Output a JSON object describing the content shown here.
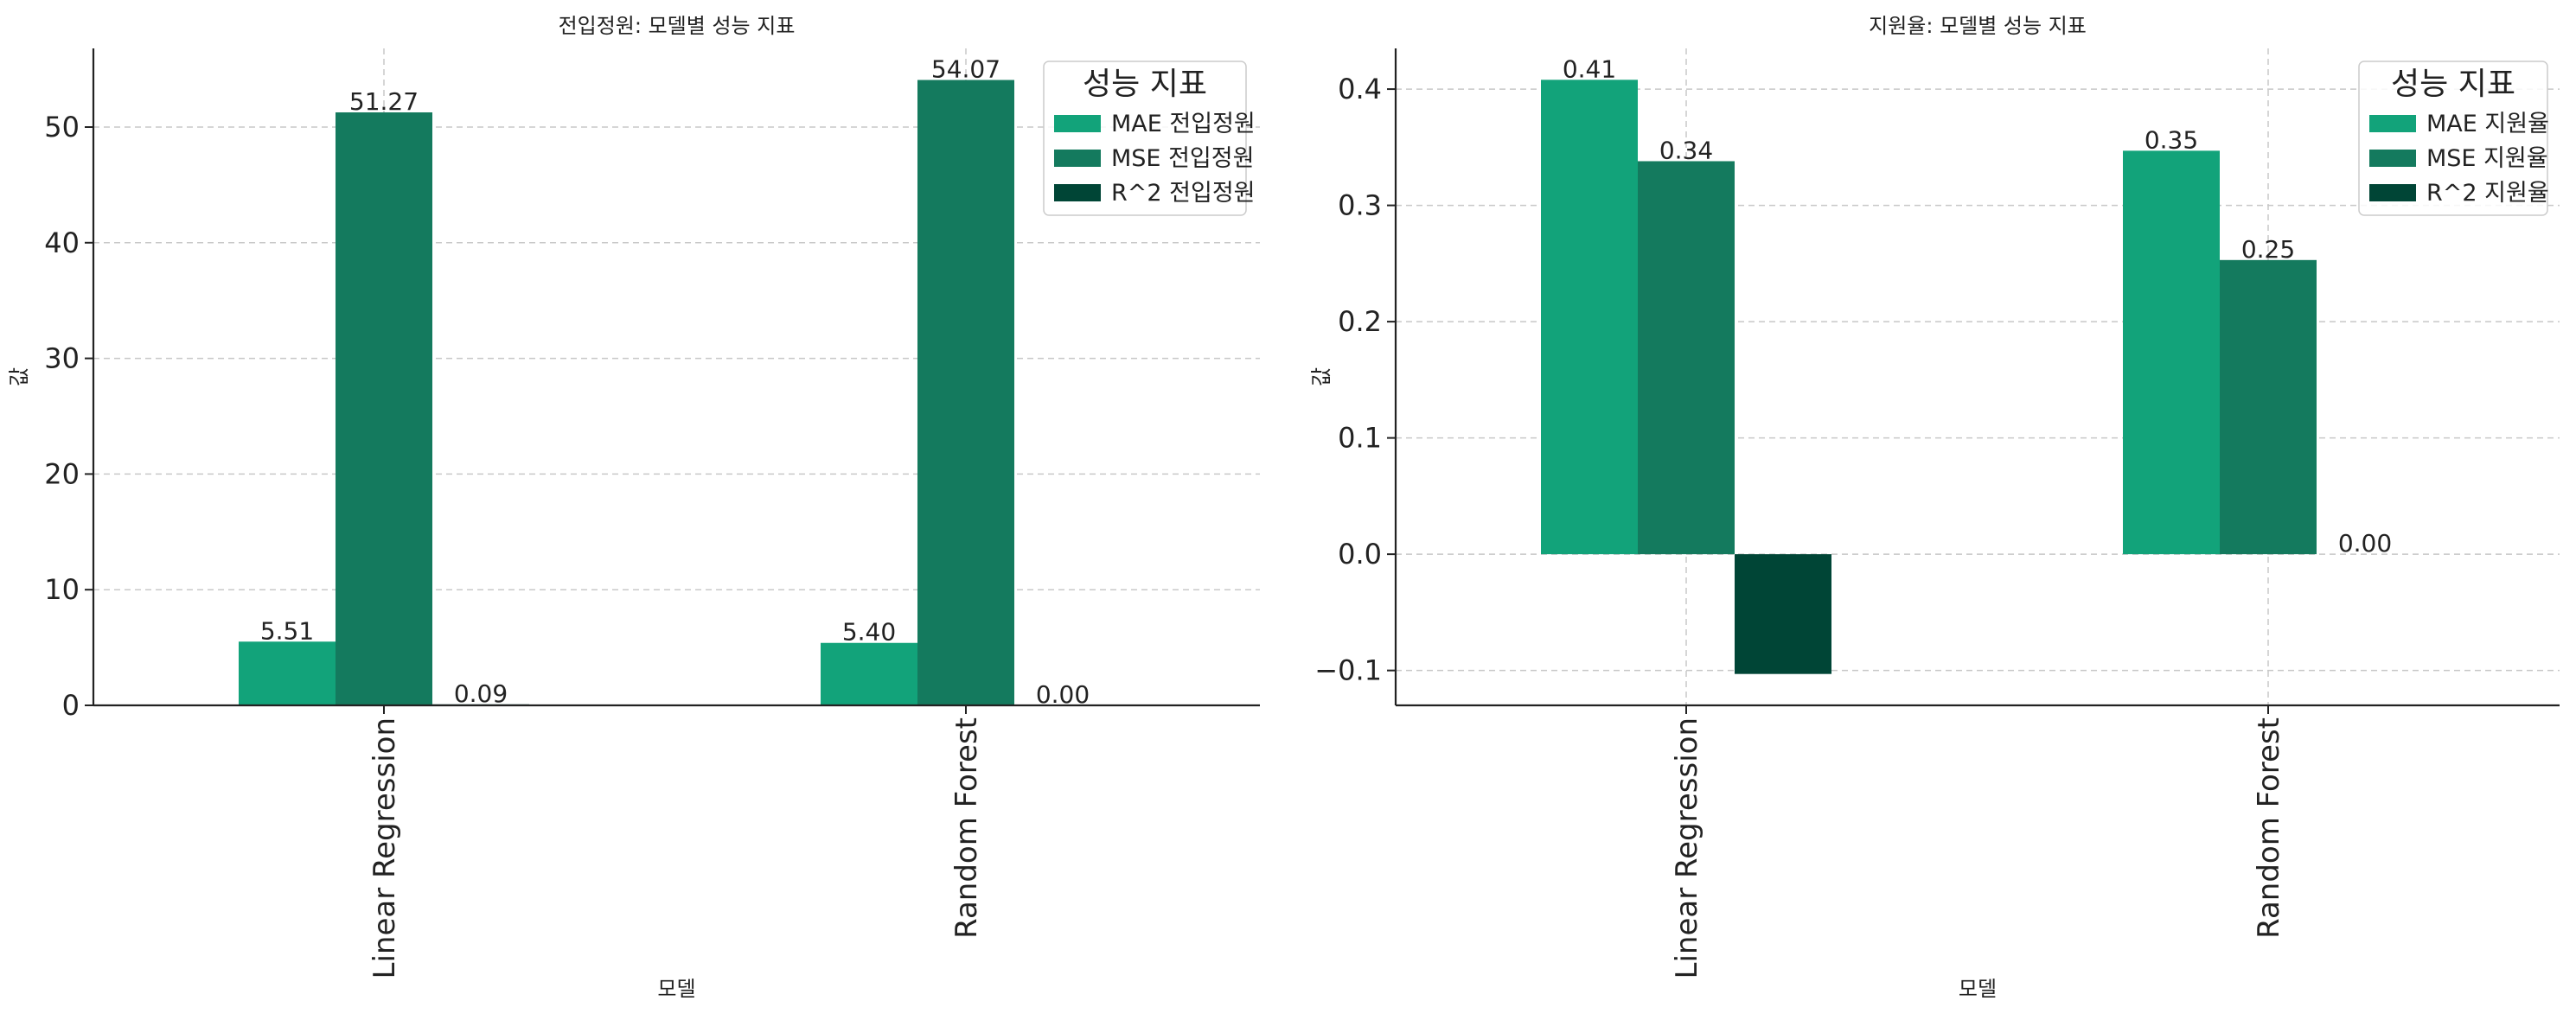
{
  "chart_data": [
    {
      "type": "bar",
      "title": "전입정원: 모델별 성능 지표",
      "xlabel": "모델",
      "ylabel": "값",
      "categories": [
        "Linear Regression",
        "Random Forest"
      ],
      "series": [
        {
          "name": "MAE 전입정원",
          "values": [
            5.51,
            5.4
          ],
          "color": "#12a37a"
        },
        {
          "name": "MSE 전입정원",
          "values": [
            51.27,
            54.07
          ],
          "color": "#147a5e"
        },
        {
          "name": "R^2 전입정원",
          "values": [
            0.09,
            0.0
          ],
          "color": "#004536"
        }
      ],
      "data_labels": [
        [
          "5.51",
          "51.27",
          "0.09"
        ],
        [
          "5.40",
          "54.07",
          "0.00"
        ]
      ],
      "ylim": [
        0,
        56.8
      ],
      "yticks": [
        0,
        10,
        20,
        30,
        40,
        50
      ],
      "legend_title": "성능 지표",
      "legend_position": "top-right",
      "grid": true
    },
    {
      "type": "bar",
      "title": "지원율: 모델별 성능 지표",
      "xlabel": "모델",
      "ylabel": "값",
      "categories": [
        "Linear Regression",
        "Random Forest"
      ],
      "series": [
        {
          "name": "MAE 지원율",
          "values": [
            0.408,
            0.347
          ],
          "color": "#12a37a"
        },
        {
          "name": "MSE 지원율",
          "values": [
            0.338,
            0.253
          ],
          "color": "#147a5e"
        },
        {
          "name": "R^2 지원율",
          "values": [
            -0.103,
            0.0
          ],
          "color": "#004536"
        }
      ],
      "data_labels": [
        [
          "0.41",
          "0.34",
          ""
        ],
        [
          "0.35",
          "0.25",
          "0.00"
        ]
      ],
      "ylim": [
        -0.13,
        0.435
      ],
      "yticks": [
        -0.1,
        0.0,
        0.1,
        0.2,
        0.3,
        0.4
      ],
      "legend_title": "성능 지표",
      "legend_position": "top-right",
      "grid": true
    }
  ]
}
